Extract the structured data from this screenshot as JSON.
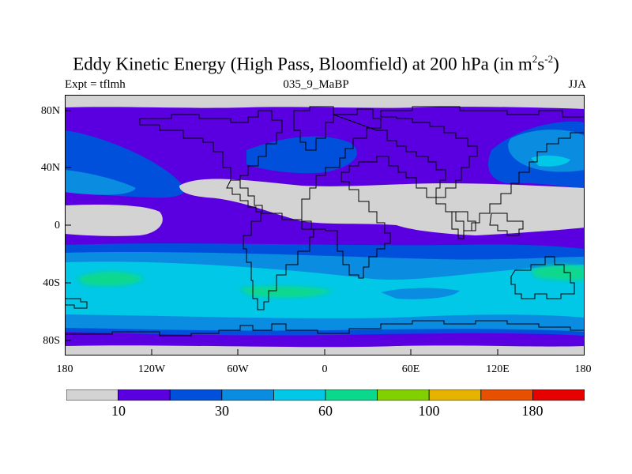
{
  "title": {
    "main": "Eddy Kinetic Energy (High Pass, Bloomfield) at 200 hPa (in m",
    "sup1": "2",
    "mid": "s",
    "sup2": "-2",
    "end": ")"
  },
  "subtitle_left": "Expt = tflmh",
  "subtitle_center": "035_9_MaBP",
  "subtitle_right": "JJA",
  "y_axis_labels": [
    "80N",
    "40N",
    "0",
    "40S",
    "80S"
  ],
  "x_axis_labels": [
    "180",
    "120W",
    "60W",
    "0",
    "60E",
    "120E",
    "180"
  ],
  "colorbar": {
    "colors": [
      "#d3d3d3",
      "#5a00e0",
      "#0050dc",
      "#0a8ce0",
      "#00c8e6",
      "#0ad88c",
      "#82d000",
      "#e6b400",
      "#e65000",
      "#e60000"
    ],
    "labels": [
      "10",
      "30",
      "60",
      "100",
      "180"
    ]
  },
  "map": {
    "projection": "cylindrical-equidistant",
    "lon_range": [
      -180,
      180
    ],
    "lat_range": [
      -90,
      90
    ],
    "variable": "Eddy Kinetic Energy",
    "level": "200 hPa",
    "fill_colors": {
      "gray": "#d3d3d3",
      "purple": "#5a00e0",
      "blue": "#0050dc",
      "mid_blue": "#0a8ce0",
      "cyan": "#00c8e6",
      "green": "#0ad88c"
    }
  }
}
